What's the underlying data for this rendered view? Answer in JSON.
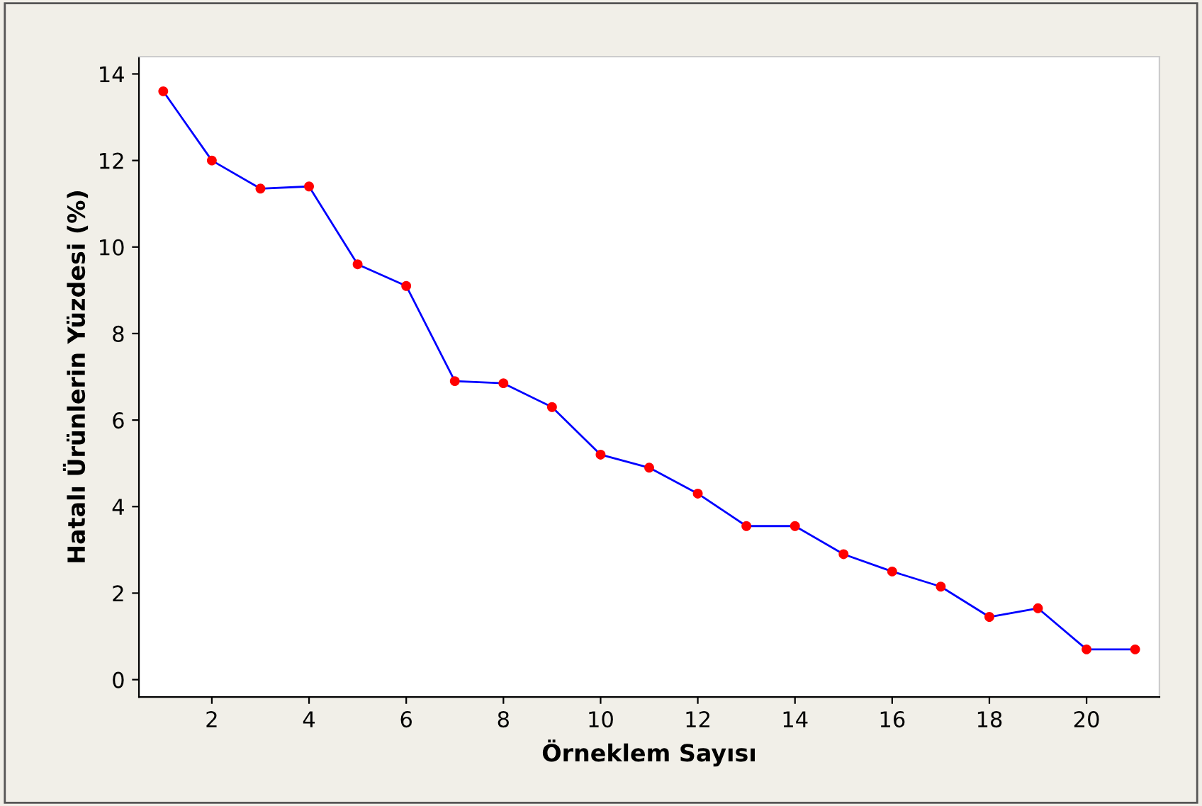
{
  "chart_data": {
    "type": "line",
    "xlabel": "Örneklem Sayısı",
    "ylabel": "Hatalı Ürünlerin Yüzdesi (%)",
    "x": [
      1,
      2,
      3,
      4,
      5,
      6,
      7,
      8,
      9,
      10,
      11,
      12,
      13,
      14,
      15,
      16,
      17,
      18,
      19,
      20,
      21
    ],
    "series": [
      {
        "color": "#0000ff",
        "colors": [
          "#ff0000",
          "#ff0000",
          "#ff0000",
          "#ff0000",
          "#ff0000",
          "#ff0000",
          "#ff0000",
          "#ff0000",
          "#ff0000",
          "#ff0000",
          "#ff0000",
          "#ff0000",
          "#ff0000",
          "#ff0000",
          "#ff0000",
          "#ff0000",
          "#ff0000",
          "#ff0000",
          "#ff0000",
          "#ff0000",
          "#ff0000"
        ],
        "values": [
          13.6,
          12.0,
          11.35,
          11.4,
          9.6,
          9.1,
          6.9,
          6.85,
          6.3,
          5.2,
          4.9,
          4.3,
          3.55,
          3.55,
          2.9,
          2.5,
          2.15,
          1.45,
          1.65,
          0.7,
          0.7
        ]
      }
    ],
    "xlim": [
      0.5,
      21.5
    ],
    "xticks": [
      2,
      4,
      6,
      8,
      10,
      12,
      14,
      16,
      18,
      20
    ],
    "ylim": [
      -0.4,
      14.4
    ],
    "yticks": [
      0,
      2,
      4,
      6,
      8,
      10,
      12,
      14
    ],
    "marker": "circle",
    "line_style": "solid",
    "grid": false,
    "legend": false
  }
}
